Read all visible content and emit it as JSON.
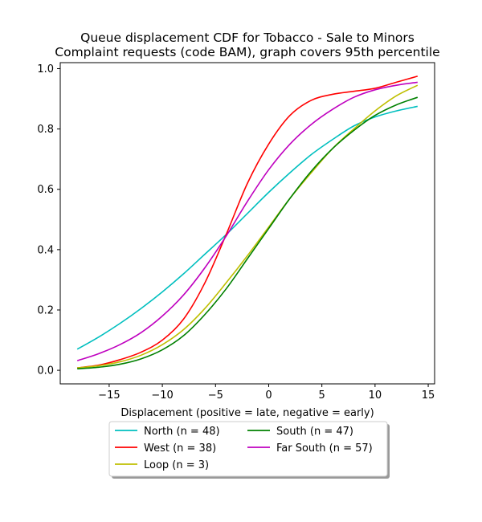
{
  "chart_data": {
    "type": "line",
    "title_line1": "Queue displacement CDF for Tobacco - Sale to Minors",
    "title_line2": "Complaint  requests (code BAM), graph covers 95th percentile",
    "xlabel": "Displacement (positive = late, negative = early)",
    "ylabel": "",
    "xlim": [
      -19.6,
      15.6
    ],
    "ylim": [
      -0.045,
      1.02
    ],
    "x_ticks": [
      -15,
      -10,
      -5,
      0,
      5,
      10,
      15
    ],
    "x_tick_labels": [
      "−15",
      "−10",
      "−5",
      "0",
      "5",
      "10",
      "15"
    ],
    "y_ticks": [
      0.0,
      0.2,
      0.4,
      0.6,
      0.8,
      1.0
    ],
    "y_tick_labels": [
      "0.0",
      "0.2",
      "0.4",
      "0.6",
      "0.8",
      "1.0"
    ],
    "grid": false,
    "legend_position": "below",
    "legend_columns": 2,
    "series": [
      {
        "name": "North (n = 48)",
        "color": "#00bfbf",
        "x": [
          -18,
          -16,
          -14,
          -12,
          -10,
          -8,
          -6,
          -4,
          -2,
          0,
          2,
          4,
          6,
          8,
          10,
          12,
          14
        ],
        "y": [
          0.07,
          0.11,
          0.155,
          0.205,
          0.26,
          0.32,
          0.385,
          0.45,
          0.52,
          0.59,
          0.655,
          0.715,
          0.765,
          0.81,
          0.84,
          0.86,
          0.875
        ]
      },
      {
        "name": "West (n = 38)",
        "color": "#ff0000",
        "x": [
          -18,
          -16,
          -14,
          -12,
          -10,
          -8,
          -6,
          -4,
          -2,
          0,
          2,
          4,
          6,
          8,
          10,
          12,
          14
        ],
        "y": [
          0.008,
          0.017,
          0.035,
          0.06,
          0.1,
          0.17,
          0.29,
          0.45,
          0.62,
          0.75,
          0.845,
          0.895,
          0.915,
          0.925,
          0.935,
          0.955,
          0.975
        ]
      },
      {
        "name": "Loop (n = 3)",
        "color": "#bfbf00",
        "x": [
          -18,
          -16,
          -14,
          -12,
          -10,
          -8,
          -6,
          -4,
          -2,
          0,
          2,
          4,
          6,
          8,
          10,
          12,
          14
        ],
        "y": [
          0.008,
          0.015,
          0.028,
          0.05,
          0.085,
          0.135,
          0.205,
          0.29,
          0.38,
          0.475,
          0.57,
          0.655,
          0.735,
          0.8,
          0.86,
          0.91,
          0.945
        ]
      },
      {
        "name": "South (n = 47)",
        "color": "#008000",
        "x": [
          -18,
          -16,
          -14,
          -12,
          -10,
          -8,
          -6,
          -4,
          -2,
          0,
          2,
          4,
          6,
          8,
          10,
          12,
          14
        ],
        "y": [
          0.005,
          0.01,
          0.02,
          0.038,
          0.068,
          0.115,
          0.185,
          0.27,
          0.37,
          0.47,
          0.57,
          0.66,
          0.735,
          0.795,
          0.845,
          0.88,
          0.905
        ]
      },
      {
        "name": "Far South (n = 57)",
        "color": "#bf00bf",
        "x": [
          -18,
          -16,
          -14,
          -12,
          -10,
          -8,
          -6,
          -4,
          -2,
          0,
          2,
          4,
          6,
          8,
          10,
          12,
          14
        ],
        "y": [
          0.032,
          0.055,
          0.085,
          0.125,
          0.18,
          0.25,
          0.34,
          0.445,
          0.56,
          0.665,
          0.75,
          0.815,
          0.865,
          0.905,
          0.93,
          0.945,
          0.955
        ]
      }
    ]
  }
}
